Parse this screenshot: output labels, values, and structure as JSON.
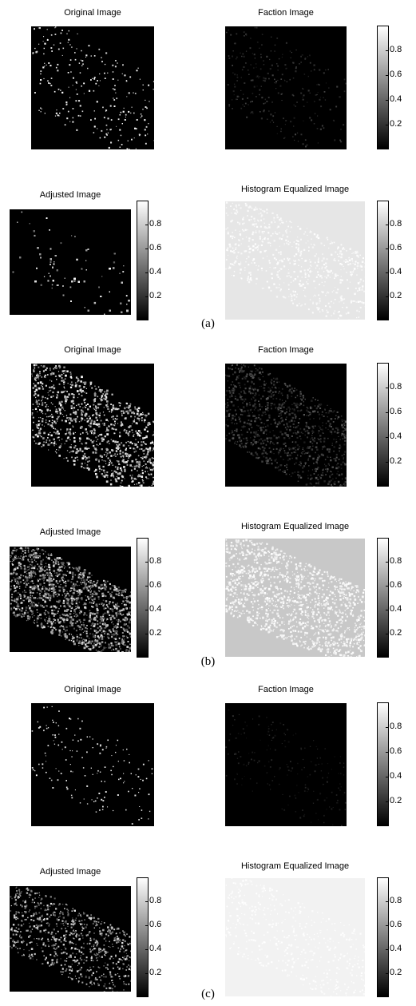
{
  "titles": {
    "original": "Original Image",
    "faction": "Faction Image",
    "adjusted": "Adjusted Image",
    "histeq": "Histogram Equalized Image"
  },
  "colorbar_ticks": [
    "0.8",
    "0.6",
    "0.4",
    "0.2"
  ],
  "colorbar_tick_values": [
    0.8,
    0.6,
    0.4,
    0.2
  ],
  "colorbar_range": [
    0,
    1
  ],
  "captions": [
    "(a)",
    "(b)",
    "(c)"
  ],
  "background_gray": {
    "a": {
      "original": "#000000",
      "faction": "#000000",
      "adjusted": "#000000",
      "histeq": "#e6e6e6"
    },
    "b": {
      "original": "#000000",
      "faction": "#000000",
      "adjusted": "#000000",
      "histeq": "#c8c8c8"
    },
    "c": {
      "original": "#000000",
      "faction": "#000000",
      "adjusted": "#000000",
      "histeq": "#f2f2f2"
    }
  }
}
